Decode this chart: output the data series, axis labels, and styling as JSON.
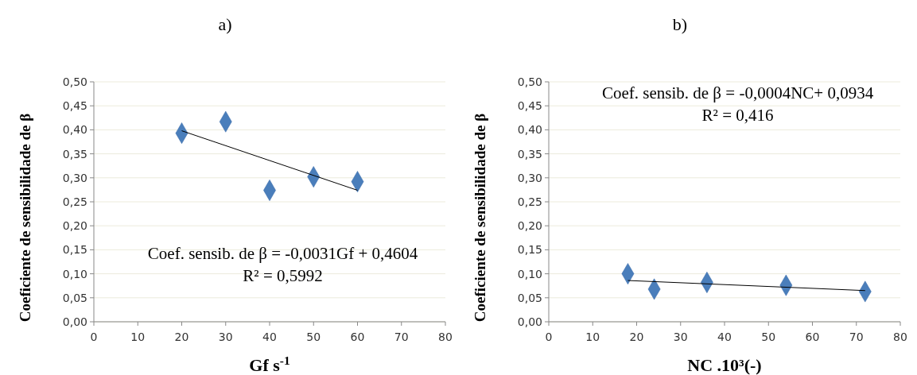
{
  "chart_data": [
    {
      "type": "scatter",
      "title": "a)",
      "xlabel": "Gf s$^{-1}$",
      "ylabel": "Coeficiente de sensibilidade de β",
      "annotations": [
        "Coef. sensib. de β = -0,0031Gf + 0,4604",
        "R² = 0,5992"
      ],
      "xlim": [
        0,
        80
      ],
      "xticks": [
        0,
        10,
        20,
        30,
        40,
        50,
        60,
        70,
        80
      ],
      "ylim": [
        0,
        0.5
      ],
      "yticks": [
        {
          "value": 0,
          "label": "0,00"
        },
        {
          "value": 0.05,
          "label": "0,05"
        },
        {
          "value": 0.1,
          "label": "0,10"
        },
        {
          "value": 0.15,
          "label": "0,15"
        },
        {
          "value": 0.2,
          "label": "0,20"
        },
        {
          "value": 0.25,
          "label": "0,25"
        },
        {
          "value": 0.3,
          "label": "0,30"
        },
        {
          "value": 0.35,
          "label": "0,35"
        },
        {
          "value": 0.4,
          "label": "0,40"
        },
        {
          "value": 0.45,
          "label": "0,45"
        },
        {
          "value": 0.5,
          "label": "0,50"
        }
      ],
      "grid": "y",
      "marker": "diamond",
      "series": [
        {
          "type": "scatter",
          "color": "#4a7ebb",
          "x": [
            20,
            30,
            40,
            50,
            60
          ],
          "values": [
            0.393,
            0.417,
            0.274,
            0.302,
            0.292
          ]
        },
        {
          "type": "line",
          "color": "#000000",
          "marker": "none",
          "x": [
            20,
            60
          ],
          "values": [
            0.398,
            0.274
          ]
        }
      ]
    },
    {
      "type": "scatter",
      "title": "b)",
      "xlabel": "NC .10³(-)",
      "ylabel": "Coeficiente de sensibilidade de β",
      "annotations": [
        "Coef. sensib. de β = -0,0004NC+ 0,0934",
        "R² = 0,416"
      ],
      "xlim": [
        0,
        80
      ],
      "xticks": [
        0,
        10,
        20,
        30,
        40,
        50,
        60,
        70,
        80
      ],
      "ylim": [
        0,
        0.5
      ],
      "yticks": [
        {
          "value": 0,
          "label": "0,00"
        },
        {
          "value": 0.05,
          "label": "0,05"
        },
        {
          "value": 0.1,
          "label": "0,10"
        },
        {
          "value": 0.15,
          "label": "0,15"
        },
        {
          "value": 0.2,
          "label": "0,20"
        },
        {
          "value": 0.25,
          "label": "0,25"
        },
        {
          "value": 0.3,
          "label": "0,30"
        },
        {
          "value": 0.35,
          "label": "0,35"
        },
        {
          "value": 0.4,
          "label": "0,40"
        },
        {
          "value": 0.45,
          "label": "0,45"
        },
        {
          "value": 0.5,
          "label": "0,50"
        }
      ],
      "grid": "y",
      "marker": "diamond",
      "series": [
        {
          "type": "scatter",
          "color": "#4a7ebb",
          "x": [
            18,
            24,
            36,
            54,
            72
          ],
          "values": [
            0.1,
            0.068,
            0.082,
            0.076,
            0.063
          ]
        },
        {
          "type": "line",
          "color": "#000000",
          "marker": "none",
          "x": [
            18,
            72
          ],
          "values": [
            0.086,
            0.065
          ]
        }
      ]
    }
  ]
}
